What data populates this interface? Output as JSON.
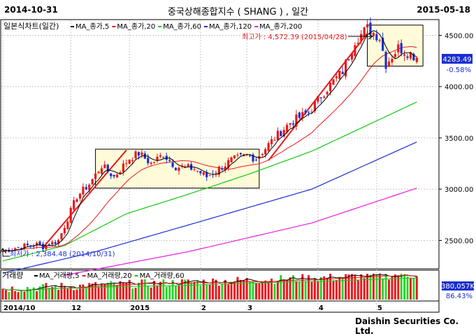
{
  "header": {
    "start_date": "2014-10-31",
    "end_date": "2015-05-18",
    "title": "중국상해종합지수 ( SHANG ) , 일간"
  },
  "legend": {
    "price_label": "일본식차트(일간)",
    "price_ma": [
      {
        "label": "MA_종가,5",
        "color": "#000000"
      },
      {
        "label": "MA_종가,20",
        "color": "#e8191c"
      },
      {
        "label": "MA_종가,60",
        "color": "#16c716"
      },
      {
        "label": "MA_종가,120",
        "color": "#1a2fd0"
      },
      {
        "label": "MA_종가,200",
        "color": "#e61ee0"
      }
    ],
    "volume_label": "거래량",
    "volume_ma": [
      {
        "label": "MA_거래량,5",
        "color": "#000000"
      },
      {
        "label": "MA_거래량,20",
        "color": "#e8191c"
      },
      {
        "label": "MA_거래량,60",
        "color": "#16c716"
      }
    ]
  },
  "annotations": {
    "high": "최고가 : 4,572.39 (2015/04/28)",
    "low": "최저가 : 2,384.48 (2014/10/31)"
  },
  "price_box": {
    "value": "4283.49",
    "change": "-0.58%"
  },
  "volume_box": {
    "value": "380,057K",
    "pct": "86.43%"
  },
  "footer": "Daishin Securities Co. Ltd.",
  "colors": {
    "up": "#e8191c",
    "down": "#1a2fd0",
    "volume_up": "#e8191c",
    "volume_down": "#2bd42b",
    "box_fill": "#fffbd9"
  },
  "chart_data": {
    "type": "candlestick",
    "y_axis": {
      "ticks": [
        2500,
        3000,
        3500,
        4000,
        4500
      ],
      "tick_labels": [
        "2500.00",
        "3000.00",
        "3500.00",
        "4000.00",
        "4500.00"
      ],
      "range": [
        2230,
        4640
      ]
    },
    "x_axis": {
      "labels": [
        "2014/10",
        "12",
        "2015",
        "2",
        "3",
        "4",
        "5"
      ],
      "label_index": [
        0,
        22,
        41,
        64,
        79,
        102,
        121
      ]
    },
    "high": {
      "value": 4572.39,
      "date": "2015/04/28"
    },
    "low": {
      "value": 2384.48,
      "date": "2014/10/31"
    },
    "last_close": 4283.49,
    "change_pct": -0.58,
    "anchors_close": [
      [
        0,
        2400
      ],
      [
        6,
        2440
      ],
      [
        11,
        2460
      ],
      [
        13,
        2440
      ],
      [
        18,
        2500
      ],
      [
        24,
        2930
      ],
      [
        28,
        3050
      ],
      [
        32,
        3230
      ],
      [
        36,
        3120
      ],
      [
        41,
        3300
      ],
      [
        44,
        3350
      ],
      [
        48,
        3250
      ],
      [
        52,
        3340
      ],
      [
        56,
        3220
      ],
      [
        62,
        3200
      ],
      [
        66,
        3120
      ],
      [
        70,
        3200
      ],
      [
        74,
        3280
      ],
      [
        79,
        3330
      ],
      [
        82,
        3300
      ],
      [
        88,
        3500
      ],
      [
        93,
        3650
      ],
      [
        99,
        3750
      ],
      [
        104,
        3950
      ],
      [
        110,
        4150
      ],
      [
        114,
        4450
      ],
      [
        118,
        4570
      ],
      [
        122,
        4480
      ],
      [
        124,
        4220
      ],
      [
        128,
        4380
      ],
      [
        132,
        4320
      ],
      [
        134,
        4283
      ]
    ],
    "ma_series": [
      {
        "name": "MA_종가,60",
        "anchors": [
          [
            0,
            2300
          ],
          [
            20,
            2450
          ],
          [
            40,
            2760
          ],
          [
            60,
            2950
          ],
          [
            80,
            3150
          ],
          [
            100,
            3370
          ],
          [
            134,
            3850
          ]
        ]
      },
      {
        "name": "MA_종가,120",
        "anchors": [
          [
            0,
            2180
          ],
          [
            30,
            2390
          ],
          [
            60,
            2650
          ],
          [
            100,
            3000
          ],
          [
            134,
            3460
          ]
        ]
      },
      {
        "name": "MA_종가,200",
        "anchors": [
          [
            20,
            2160
          ],
          [
            60,
            2390
          ],
          [
            100,
            2670
          ],
          [
            134,
            3010
          ]
        ]
      }
    ],
    "volume": {
      "count": 135,
      "avg_ma60_fraction": 0.62
    }
  }
}
